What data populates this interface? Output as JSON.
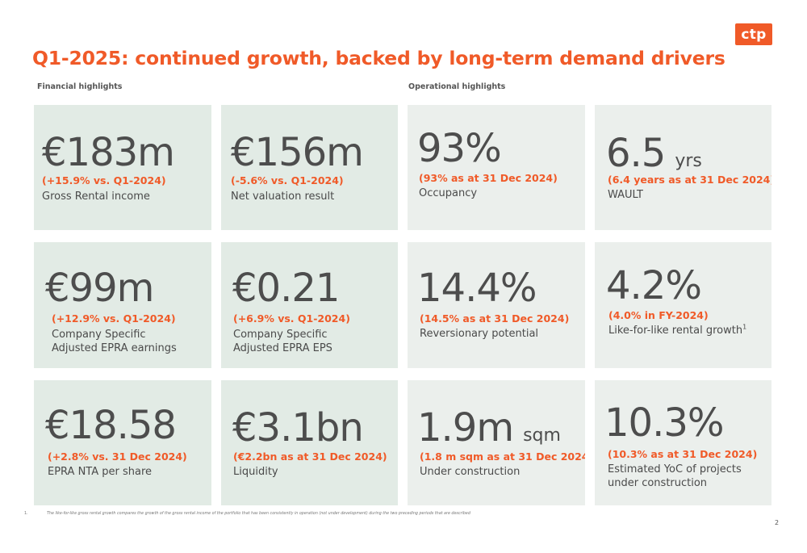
{
  "logo": "ctp",
  "title": "Q1-2025: continued growth, backed by long-term demand drivers",
  "sections": {
    "financial": "Financial highlights",
    "operational": "Operational highlights"
  },
  "financial_cards": [
    {
      "value": "€183m",
      "change": "(+15.9% vs. Q1-2024)",
      "desc1": "Gross Rental income",
      "desc2": ""
    },
    {
      "value": "€156m",
      "change": "(-5.6% vs. Q1-2024)",
      "desc1": "Net valuation result",
      "desc2": ""
    },
    {
      "value": "€99m",
      "change": "(+12.9% vs. Q1-2024)",
      "desc1": "Company Specific",
      "desc2": "Adjusted EPRA earnings"
    },
    {
      "value": "€0.21",
      "change": "(+6.9% vs. Q1-2024)",
      "desc1": "Company Specific",
      "desc2": "Adjusted EPRA EPS"
    },
    {
      "value": "€18.58",
      "change": "(+2.8% vs. 31 Dec 2024)",
      "desc1": "EPRA NTA per share",
      "desc2": ""
    },
    {
      "value": "€3.1bn",
      "change": "(€2.2bn as at 31 Dec 2024)",
      "desc1": "Liquidity",
      "desc2": ""
    }
  ],
  "operational_cards": [
    {
      "value": "93%",
      "unit": "",
      "change": "(93% as at 31 Dec 2024)",
      "desc1": "Occupancy",
      "desc2": "",
      "sup": ""
    },
    {
      "value": "6.5",
      "unit": "yrs",
      "change": "(6.4 years as at 31 Dec 2024)",
      "desc1": "WAULT",
      "desc2": "",
      "sup": ""
    },
    {
      "value": "14.4%",
      "unit": "",
      "change": "(14.5% as at 31 Dec 2024)",
      "desc1": "Reversionary potential",
      "desc2": "",
      "sup": ""
    },
    {
      "value": "4.2%",
      "unit": "",
      "change": "(4.0% in FY-2024)",
      "desc1": "Like-for-like rental growth",
      "desc2": "",
      "sup": "1"
    },
    {
      "value": "1.9m",
      "unit": "sqm",
      "change": "(1.8 m sqm as at 31 Dec 2024)",
      "desc1": "Under construction",
      "desc2": "",
      "sup": ""
    },
    {
      "value": "10.3%",
      "unit": "",
      "change": "(10.3% as at 31 Dec 2024)",
      "desc1": "Estimated YoC of projects",
      "desc2": "under construction",
      "sup": ""
    }
  ],
  "footnote": {
    "number": "1.",
    "text": "The like-for-like gross rental growth compares the growth of the gross rental income of the portfolio that has been consistently in operation (not under development) during the two preceding periods that are described"
  },
  "page_number": "2"
}
